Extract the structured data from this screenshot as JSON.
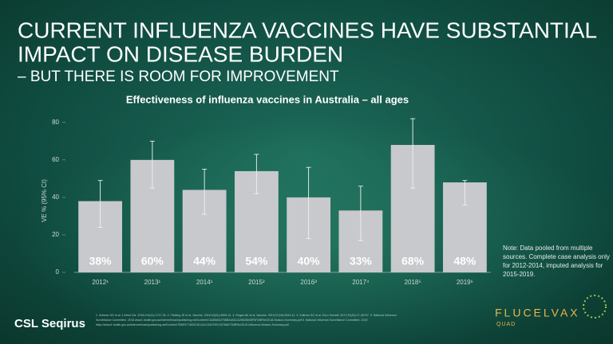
{
  "header": {
    "title_lines": [
      "CURRENT INFLUENZA VACCINES HAVE SUBSTANTIAL",
      "IMPACT ON DISEASE BURDEN"
    ],
    "subtitle": "– BUT THERE IS ROOM FOR IMPROVEMENT"
  },
  "chart_data": {
    "type": "bar",
    "title": "Effectiveness of influenza vaccines in Australia – all ages",
    "y_label": "VE % (95% CI)",
    "categories": [
      "2012¹",
      "2013¹",
      "2014¹",
      "2015²",
      "2016³",
      "2017⁴",
      "2018⁵",
      "2019⁶"
    ],
    "values": [
      38,
      60,
      44,
      54,
      40,
      33,
      68,
      48
    ],
    "value_labels": [
      "38%",
      "60%",
      "44%",
      "54%",
      "40%",
      "33%",
      "68%",
      "48%"
    ],
    "ci_low": [
      24,
      45,
      31,
      42,
      18,
      17,
      45,
      36
    ],
    "ci_high": [
      49,
      70,
      55,
      63,
      56,
      46,
      82,
      49
    ],
    "color": "#c8c9cc",
    "ylim": [
      0,
      85
    ],
    "yticks": [
      0,
      20,
      40,
      60,
      80
    ]
  },
  "note_lines": [
    "Note: Data pooled from multiple",
    "sources. Complete case analysis only",
    "for 2012-2014, imputed analysis for",
    "2015-2019."
  ],
  "footnote_lines": [
    "1. Sullivan SG et al. J Infect Dis. 2016;214(11):1717-26. 2. Fielding JE et al. Vaccine. 2016;34(41):4905-12. 3. Regan AK et al. Vaccine. 2019;37(19):2634-41. 4. Sullivan SG et al. Euro Surveill. 2017;22(43):17-00707. 5. National Influenza",
    "Surveillance Committee. 2018 www1.health.gov.au/internet/main/publishing.nsf/Content/CA0B6532758B44A5CA25B28008F6F3/$File/2018-Season-Summary.pdf 6. National Influenza Surveillance Committee. 2019",
    "https://www1.health.gov.au/internet/main/publishing.nsf/Content/7B5E0774EBC3D1A1CA25790C0078AE7D/$File/2019-Influenza-Season-Summary.pdf"
  ],
  "logos": {
    "company": "CSL Seqirus",
    "product": "FLUCELVAX",
    "product_sub": "QUAD"
  }
}
